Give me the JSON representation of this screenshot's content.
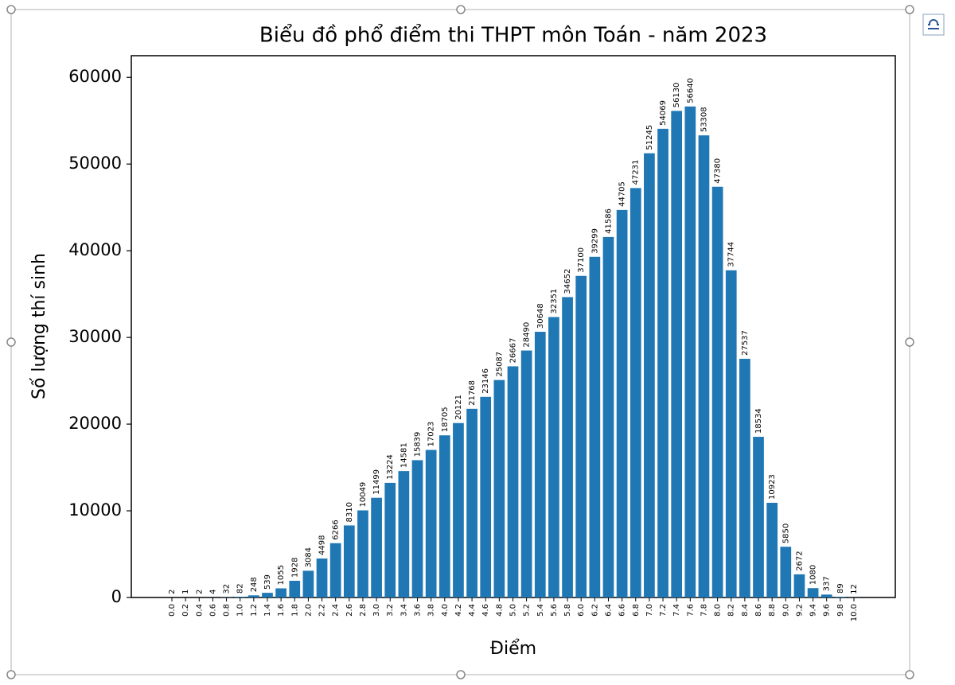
{
  "chart_data": {
    "type": "bar",
    "title": "Biểu đồ phổ điểm thi THPT môn Toán - năm 2023",
    "xlabel": "Điểm",
    "ylabel": "Số lượng thí sinh",
    "categories": [
      "0.0",
      "0.2",
      "0.4",
      "0.6",
      "0.8",
      "1.0",
      "1.2",
      "1.4",
      "1.6",
      "1.8",
      "2.0",
      "2.2",
      "2.4",
      "2.6",
      "2.8",
      "3.0",
      "3.2",
      "3.4",
      "3.6",
      "3.8",
      "4.0",
      "4.2",
      "4.4",
      "4.6",
      "4.8",
      "5.0",
      "5.2",
      "5.4",
      "5.6",
      "5.8",
      "6.0",
      "6.2",
      "6.4",
      "6.6",
      "6.8",
      "7.0",
      "7.2",
      "7.4",
      "7.6",
      "7.8",
      "8.0",
      "8.2",
      "8.4",
      "8.6",
      "8.8",
      "9.0",
      "9.2",
      "9.4",
      "9.6",
      "9.8",
      "10.0"
    ],
    "values": [
      2,
      1,
      2,
      4,
      32,
      82,
      248,
      539,
      1055,
      1928,
      3084,
      4498,
      6266,
      8310,
      10049,
      11499,
      13224,
      14581,
      15839,
      17023,
      18705,
      20121,
      21768,
      23146,
      25087,
      26667,
      28490,
      30648,
      32351,
      34652,
      37100,
      39299,
      41586,
      44705,
      47231,
      51245,
      54069,
      56130,
      56640,
      53308,
      47380,
      37744,
      27537,
      18534,
      10923,
      5850,
      2672,
      1080,
      337,
      89,
      12
    ],
    "color": "#1f77b4",
    "ylim": [
      0,
      62500
    ],
    "yticks": [
      0,
      10000,
      20000,
      30000,
      40000,
      50000,
      60000
    ]
  }
}
